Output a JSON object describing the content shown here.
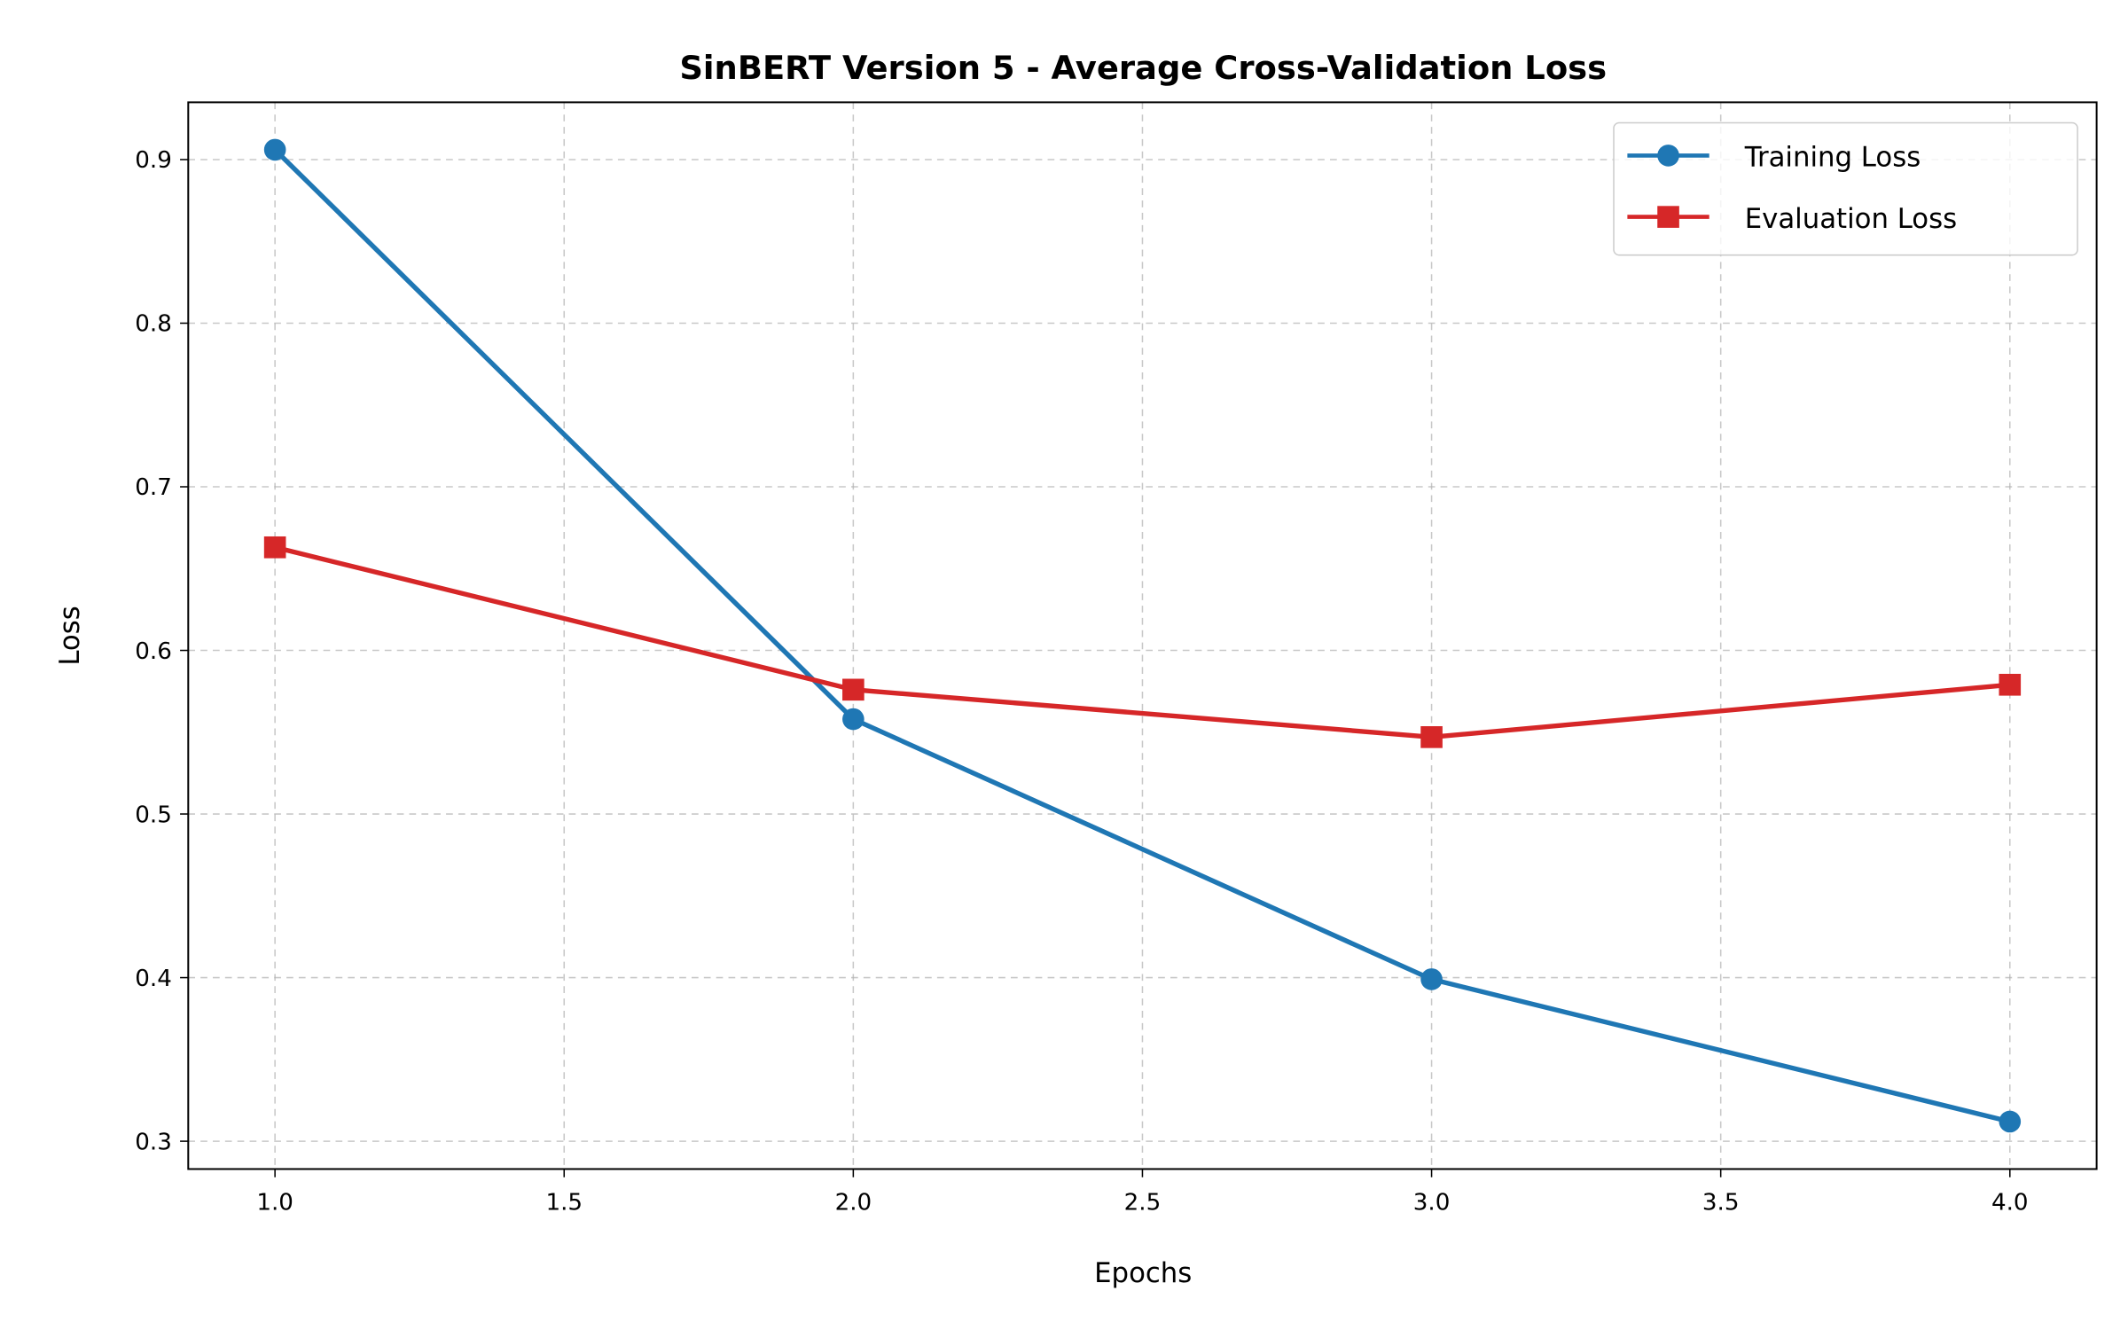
{
  "chart_data": {
    "type": "line",
    "title": "SinBERT Version 5 - Average Cross-Validation Loss",
    "xlabel": "Epochs",
    "ylabel": "Loss",
    "xlim": [
      0.85,
      4.15
    ],
    "ylim": [
      0.283,
      0.935
    ],
    "xticks": [
      1.0,
      1.5,
      2.0,
      2.5,
      3.0,
      3.5,
      4.0
    ],
    "xtick_labels": [
      "1.0",
      "1.5",
      "2.0",
      "2.5",
      "3.0",
      "3.5",
      "4.0"
    ],
    "yticks": [
      0.3,
      0.4,
      0.5,
      0.6,
      0.7,
      0.8,
      0.9
    ],
    "ytick_labels": [
      "0.3",
      "0.4",
      "0.5",
      "0.6",
      "0.7",
      "0.8",
      "0.9"
    ],
    "grid": true,
    "grid_style": "dashed",
    "legend_position": "top-right",
    "x": [
      1,
      2,
      3,
      4
    ],
    "series": [
      {
        "name": "Training Loss",
        "values": [
          0.906,
          0.558,
          0.399,
          0.312
        ],
        "color": "#1f77b4",
        "marker": "circle"
      },
      {
        "name": "Evaluation Loss",
        "values": [
          0.663,
          0.576,
          0.547,
          0.579
        ],
        "color": "#d62728",
        "marker": "square"
      }
    ]
  }
}
